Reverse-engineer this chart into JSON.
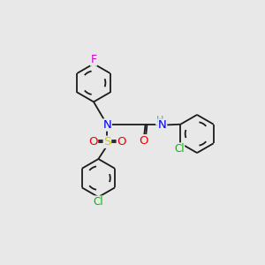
{
  "bg_color": "#e8e8e8",
  "bond_color": "#1a1a1a",
  "atom_colors": {
    "F": "#cc00cc",
    "N": "#0000ee",
    "O": "#ee0000",
    "S": "#cccc00",
    "Cl": "#00bb00",
    "H": "#669999",
    "C": "#1a1a1a"
  },
  "font_size": 8.5,
  "line_width": 1.3
}
